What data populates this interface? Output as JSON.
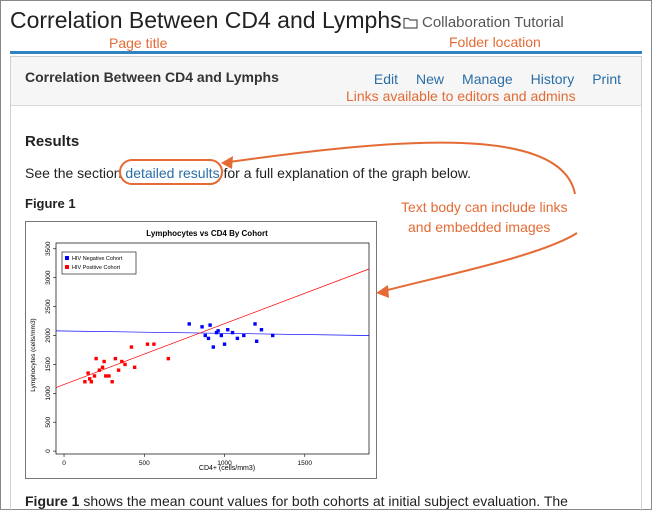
{
  "page": {
    "title": "Correlation Between CD4 and Lymphs",
    "folder_name": "Collaboration Tutorial"
  },
  "annotations": {
    "page_title": "Page title",
    "folder_location": "Folder location",
    "links_note": "Links available to editors and admins",
    "body_note_line1": "Text body can include links",
    "body_note_line2": "and embedded images"
  },
  "panel": {
    "title": "Correlation Between CD4 and Lymphs",
    "links": [
      "Edit",
      "New",
      "Manage",
      "History",
      "Print"
    ]
  },
  "content": {
    "results_heading": "Results",
    "see_prefix": "See the section",
    "see_link": "detailed results",
    "see_suffix": "for a full explanation of the graph below.",
    "figure_heading": "Figure 1",
    "body_bold": "Figure 1",
    "body_rest": "shows the mean count values for both cohorts at initial subject evaluation. The"
  },
  "colors": {
    "annotation": "#e46b35",
    "link": "#2a6ea6",
    "rule": "#2f83c1",
    "hiv_negative": "#0000ff",
    "hiv_positive": "#ff0000"
  },
  "chart_data": {
    "type": "scatter",
    "title": "Lymphocytes vs CD4 By Cohort",
    "xlabel": "CD4+ (cells/mm3)",
    "ylabel": "Lymphocytes (cells/mm3)",
    "xlim": [
      -50,
      1900
    ],
    "ylim": [
      -50,
      3600
    ],
    "xticks": [
      "0",
      "500",
      "1000",
      "1500"
    ],
    "xtick_values": [
      0,
      500,
      1000,
      1500
    ],
    "yticks": [
      "0",
      "500",
      "1000",
      "1500",
      "2000",
      "2500",
      "3000",
      "3500"
    ],
    "ytick_values": [
      0,
      500,
      1000,
      1500,
      2000,
      2500,
      3000,
      3500
    ],
    "legend_position": "top-left",
    "series": [
      {
        "name": "HIV Negative Cohort",
        "color": "#0000ff",
        "points": [
          [
            780,
            2200
          ],
          [
            860,
            2150
          ],
          [
            880,
            2000
          ],
          [
            900,
            1950
          ],
          [
            910,
            2180
          ],
          [
            930,
            1800
          ],
          [
            950,
            2050
          ],
          [
            980,
            2000
          ],
          [
            1000,
            1850
          ],
          [
            1020,
            2100
          ],
          [
            1050,
            2050
          ],
          [
            1080,
            1950
          ],
          [
            1120,
            2000
          ],
          [
            1190,
            2200
          ],
          [
            1200,
            1900
          ],
          [
            1230,
            2100
          ],
          [
            1300,
            2000
          ],
          [
            960,
            2080
          ]
        ],
        "trend": [
          [
            -50,
            2080
          ],
          [
            1900,
            2000
          ]
        ]
      },
      {
        "name": "HIV Positive Cohort",
        "color": "#ff0000",
        "points": [
          [
            130,
            1200
          ],
          [
            150,
            1350
          ],
          [
            160,
            1250
          ],
          [
            170,
            1200
          ],
          [
            190,
            1300
          ],
          [
            200,
            1600
          ],
          [
            220,
            1400
          ],
          [
            240,
            1450
          ],
          [
            250,
            1550
          ],
          [
            260,
            1300
          ],
          [
            280,
            1300
          ],
          [
            300,
            1200
          ],
          [
            320,
            1600
          ],
          [
            340,
            1400
          ],
          [
            360,
            1550
          ],
          [
            380,
            1500
          ],
          [
            420,
            1800
          ],
          [
            440,
            1450
          ],
          [
            520,
            1850
          ],
          [
            560,
            1850
          ],
          [
            650,
            1600
          ]
        ],
        "trend": [
          [
            -50,
            1100
          ],
          [
            1900,
            3150
          ]
        ]
      }
    ]
  }
}
